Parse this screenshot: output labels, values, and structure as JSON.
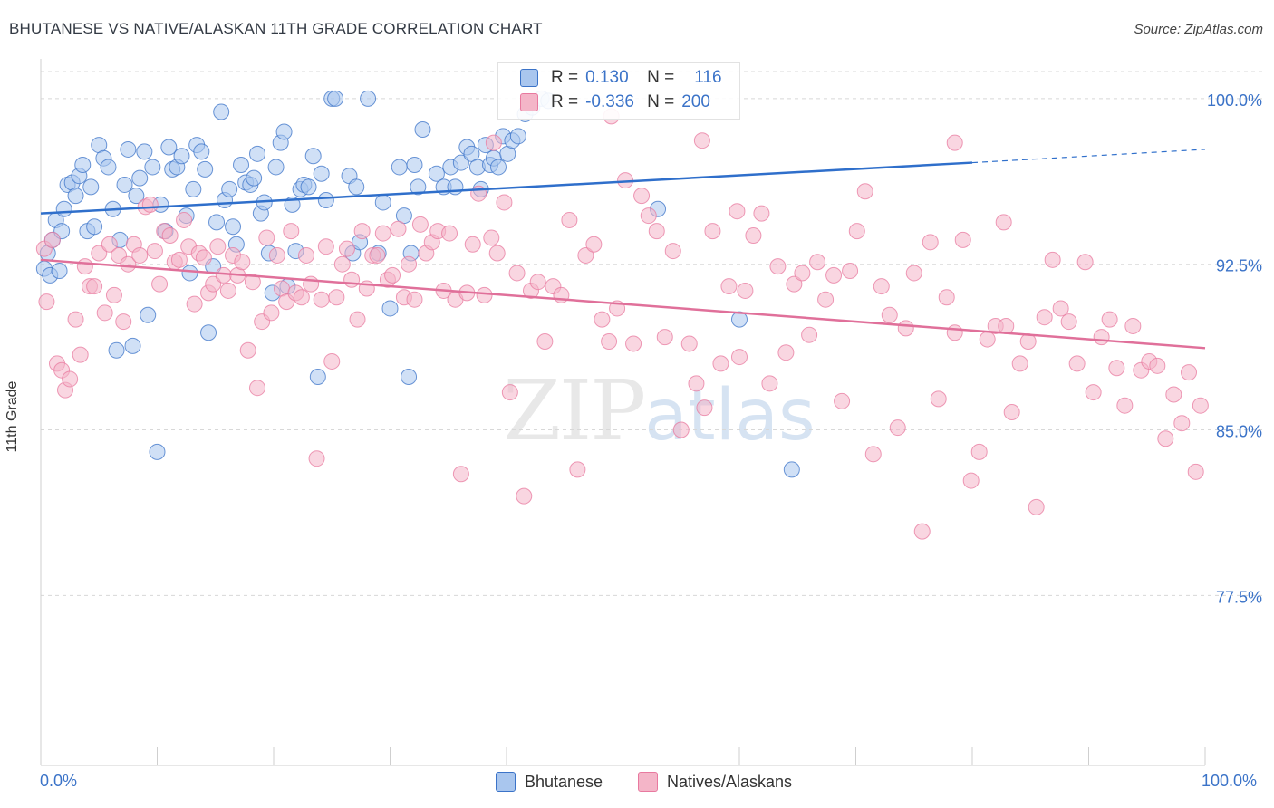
{
  "header": {
    "title": "BHUTANESE VS NATIVE/ALASKAN 11TH GRADE CORRELATION CHART",
    "source": "Source: ZipAtlas.com"
  },
  "watermark": {
    "zip": "ZIP",
    "atlas": "atlas"
  },
  "legend": {
    "rows": [
      {
        "r_label": "R =",
        "r_value": "0.130",
        "n_label": "N =",
        "n_value": "116"
      },
      {
        "r_label": "R =",
        "r_value": "-0.336",
        "n_label": "N =",
        "n_value": "200"
      }
    ]
  },
  "bottom_legend": {
    "series_a": "Bhutanese",
    "series_b": "Natives/Alaskans"
  },
  "x_axis": {
    "min_label": "0.0%",
    "max_label": "100.0%"
  },
  "colors": {
    "blue": "#3b73c8",
    "blue_fill": "#a9c6ee",
    "blue_line": "#2f6fcb",
    "pink": "#e8799f",
    "pink_fill": "#f4b5c8",
    "pink_line": "#e0709a",
    "grid": "#d8d8d8"
  },
  "chart_data": {
    "type": "scatter",
    "title": "BHUTANESE VS NATIVE/ALASKAN 11TH GRADE CORRELATION CHART",
    "xlabel": "",
    "ylabel": "11th Grade",
    "xlim": [
      0,
      100
    ],
    "ylim": [
      69.8,
      101.8
    ],
    "x_ticks": [
      "0.0%",
      "100.0%"
    ],
    "y_ticks": [
      {
        "value": 77.5,
        "label": "77.5%"
      },
      {
        "value": 85.0,
        "label": "85.0%"
      },
      {
        "value": 92.5,
        "label": "92.5%"
      },
      {
        "value": 100.0,
        "label": "100.0%"
      }
    ],
    "grid": true,
    "series": [
      {
        "name": "Bhutanese",
        "R": 0.13,
        "N": 116,
        "trend": {
          "x": [
            0,
            80,
            100
          ],
          "y": [
            94.8,
            97.1,
            97.7
          ]
        },
        "points": [
          [
            0.3,
            92.3
          ],
          [
            0.6,
            93.0
          ],
          [
            0.8,
            92.0
          ],
          [
            1.0,
            93.6
          ],
          [
            1.3,
            94.5
          ],
          [
            1.6,
            92.2
          ],
          [
            1.8,
            94.0
          ],
          [
            2.0,
            95.0
          ],
          [
            2.3,
            96.1
          ],
          [
            2.7,
            96.2
          ],
          [
            3.0,
            95.6
          ],
          [
            3.3,
            96.5
          ],
          [
            3.6,
            97.0
          ],
          [
            4.0,
            94.0
          ],
          [
            4.3,
            96.0
          ],
          [
            4.6,
            94.2
          ],
          [
            5.0,
            97.9
          ],
          [
            5.4,
            97.3
          ],
          [
            5.8,
            96.9
          ],
          [
            6.2,
            95.0
          ],
          [
            6.5,
            88.6
          ],
          [
            6.8,
            93.6
          ],
          [
            7.2,
            96.1
          ],
          [
            7.5,
            97.7
          ],
          [
            7.9,
            88.8
          ],
          [
            8.2,
            95.6
          ],
          [
            8.5,
            96.4
          ],
          [
            8.9,
            97.6
          ],
          [
            9.2,
            90.2
          ],
          [
            9.6,
            96.9
          ],
          [
            10.0,
            84.0
          ],
          [
            10.3,
            95.2
          ],
          [
            10.7,
            94.0
          ],
          [
            11.0,
            97.8
          ],
          [
            11.3,
            96.8
          ],
          [
            11.7,
            96.9
          ],
          [
            12.1,
            97.4
          ],
          [
            12.5,
            94.7
          ],
          [
            12.8,
            92.1
          ],
          [
            13.1,
            95.9
          ],
          [
            13.4,
            97.9
          ],
          [
            13.8,
            97.6
          ],
          [
            14.1,
            96.8
          ],
          [
            14.4,
            89.4
          ],
          [
            14.8,
            92.4
          ],
          [
            15.1,
            94.4
          ],
          [
            15.5,
            99.4
          ],
          [
            15.8,
            95.4
          ],
          [
            16.2,
            95.9
          ],
          [
            16.5,
            94.2
          ],
          [
            16.8,
            93.4
          ],
          [
            17.2,
            97.0
          ],
          [
            17.6,
            96.2
          ],
          [
            18.0,
            96.1
          ],
          [
            18.3,
            96.4
          ],
          [
            18.6,
            97.5
          ],
          [
            18.9,
            94.8
          ],
          [
            19.2,
            95.3
          ],
          [
            19.6,
            93.0
          ],
          [
            19.9,
            91.2
          ],
          [
            20.2,
            96.9
          ],
          [
            20.6,
            98.0
          ],
          [
            20.9,
            98.5
          ],
          [
            21.2,
            91.5
          ],
          [
            21.6,
            95.2
          ],
          [
            21.9,
            93.1
          ],
          [
            22.3,
            95.9
          ],
          [
            22.6,
            96.1
          ],
          [
            23.0,
            96.0
          ],
          [
            23.4,
            97.4
          ],
          [
            23.8,
            87.4
          ],
          [
            24.1,
            96.6
          ],
          [
            24.5,
            95.4
          ],
          [
            25.0,
            100.0
          ],
          [
            25.3,
            100.0
          ],
          [
            26.5,
            96.5
          ],
          [
            26.8,
            93.0
          ],
          [
            27.1,
            96.0
          ],
          [
            27.4,
            93.5
          ],
          [
            28.1,
            100.0
          ],
          [
            29.0,
            93.0
          ],
          [
            29.4,
            95.3
          ],
          [
            30.0,
            90.5
          ],
          [
            30.8,
            96.9
          ],
          [
            31.2,
            94.7
          ],
          [
            31.6,
            87.4
          ],
          [
            31.8,
            93.0
          ],
          [
            32.1,
            97.0
          ],
          [
            32.4,
            96.0
          ],
          [
            32.8,
            98.6
          ],
          [
            34.0,
            96.6
          ],
          [
            34.6,
            96.0
          ],
          [
            35.2,
            96.9
          ],
          [
            35.6,
            96.0
          ],
          [
            36.1,
            97.1
          ],
          [
            36.6,
            97.8
          ],
          [
            37.0,
            97.5
          ],
          [
            37.5,
            96.9
          ],
          [
            37.8,
            95.9
          ],
          [
            38.2,
            97.9
          ],
          [
            38.6,
            97.0
          ],
          [
            38.9,
            97.3
          ],
          [
            39.3,
            96.9
          ],
          [
            39.7,
            98.3
          ],
          [
            40.1,
            97.5
          ],
          [
            40.5,
            98.1
          ],
          [
            41.0,
            98.3
          ],
          [
            41.6,
            99.3
          ],
          [
            42.2,
            99.6
          ],
          [
            43.0,
            100.0
          ],
          [
            43.6,
            99.9
          ],
          [
            53.0,
            95.0
          ],
          [
            60.0,
            90.0
          ],
          [
            64.5,
            83.2
          ]
        ]
      },
      {
        "name": "Natives/Alaskans",
        "R": -0.336,
        "N": 200,
        "trend": {
          "x": [
            0,
            100
          ],
          "y": [
            92.7,
            88.7
          ]
        },
        "points": [
          [
            0.3,
            93.2
          ],
          [
            0.5,
            90.8
          ],
          [
            1.0,
            93.6
          ],
          [
            1.4,
            88.0
          ],
          [
            1.8,
            87.7
          ],
          [
            2.1,
            86.8
          ],
          [
            2.5,
            87.3
          ],
          [
            3.0,
            90.0
          ],
          [
            3.4,
            88.4
          ],
          [
            3.8,
            92.4
          ],
          [
            4.2,
            91.5
          ],
          [
            4.6,
            91.5
          ],
          [
            5.0,
            93.0
          ],
          [
            5.5,
            90.3
          ],
          [
            5.9,
            93.4
          ],
          [
            6.3,
            91.1
          ],
          [
            6.7,
            92.9
          ],
          [
            7.1,
            89.9
          ],
          [
            7.5,
            92.5
          ],
          [
            8.0,
            93.4
          ],
          [
            8.5,
            92.9
          ],
          [
            9.0,
            95.1
          ],
          [
            9.4,
            95.2
          ],
          [
            9.8,
            93.1
          ],
          [
            10.2,
            91.6
          ],
          [
            10.6,
            94.0
          ],
          [
            11.1,
            93.8
          ],
          [
            11.5,
            92.6
          ],
          [
            11.9,
            92.7
          ],
          [
            12.3,
            94.5
          ],
          [
            12.7,
            93.3
          ],
          [
            13.2,
            90.7
          ],
          [
            13.6,
            93.0
          ],
          [
            14.0,
            92.8
          ],
          [
            14.4,
            91.2
          ],
          [
            14.8,
            91.6
          ],
          [
            15.2,
            93.3
          ],
          [
            15.7,
            92.0
          ],
          [
            16.1,
            91.3
          ],
          [
            16.5,
            92.9
          ],
          [
            16.9,
            92.0
          ],
          [
            17.3,
            92.6
          ],
          [
            17.8,
            88.6
          ],
          [
            18.2,
            91.7
          ],
          [
            18.6,
            86.9
          ],
          [
            19.0,
            89.9
          ],
          [
            19.4,
            93.7
          ],
          [
            19.8,
            90.3
          ],
          [
            20.3,
            92.9
          ],
          [
            20.7,
            91.4
          ],
          [
            21.1,
            90.8
          ],
          [
            21.5,
            94.0
          ],
          [
            21.9,
            91.2
          ],
          [
            22.4,
            91.0
          ],
          [
            22.8,
            92.9
          ],
          [
            23.2,
            91.6
          ],
          [
            23.7,
            83.7
          ],
          [
            24.1,
            90.9
          ],
          [
            24.5,
            93.3
          ],
          [
            25.0,
            88.1
          ],
          [
            25.4,
            91.0
          ],
          [
            25.9,
            92.5
          ],
          [
            26.3,
            93.2
          ],
          [
            26.7,
            91.8
          ],
          [
            27.2,
            90.0
          ],
          [
            27.6,
            94.0
          ],
          [
            28.0,
            91.4
          ],
          [
            28.5,
            92.9
          ],
          [
            28.9,
            92.9
          ],
          [
            29.4,
            93.9
          ],
          [
            29.8,
            91.8
          ],
          [
            30.2,
            92.0
          ],
          [
            30.7,
            94.1
          ],
          [
            31.2,
            91.0
          ],
          [
            31.6,
            92.5
          ],
          [
            32.1,
            90.9
          ],
          [
            32.6,
            94.3
          ],
          [
            33.1,
            93.0
          ],
          [
            33.6,
            93.5
          ],
          [
            34.1,
            94.0
          ],
          [
            34.6,
            91.3
          ],
          [
            35.1,
            93.9
          ],
          [
            35.6,
            90.9
          ],
          [
            36.1,
            83.0
          ],
          [
            36.6,
            91.2
          ],
          [
            37.1,
            93.4
          ],
          [
            37.6,
            95.7
          ],
          [
            38.1,
            91.1
          ],
          [
            38.7,
            93.7
          ],
          [
            39.2,
            93.0
          ],
          [
            39.8,
            95.3
          ],
          [
            40.3,
            86.7
          ],
          [
            40.9,
            92.1
          ],
          [
            41.5,
            82.0
          ],
          [
            42.1,
            91.3
          ],
          [
            42.7,
            91.7
          ],
          [
            43.3,
            89.0
          ],
          [
            44.0,
            91.5
          ],
          [
            44.7,
            91.1
          ],
          [
            45.4,
            94.5
          ],
          [
            46.1,
            83.2
          ],
          [
            46.8,
            92.9
          ],
          [
            47.5,
            93.4
          ],
          [
            48.2,
            90.0
          ],
          [
            48.8,
            89.0
          ],
          [
            49.5,
            90.5
          ],
          [
            50.2,
            96.3
          ],
          [
            50.9,
            88.9
          ],
          [
            51.6,
            95.6
          ],
          [
            52.2,
            94.7
          ],
          [
            52.9,
            94.0
          ],
          [
            53.6,
            89.2
          ],
          [
            54.3,
            93.1
          ],
          [
            55.0,
            85.0
          ],
          [
            55.7,
            88.9
          ],
          [
            56.3,
            87.1
          ],
          [
            57.0,
            86.0
          ],
          [
            57.7,
            94.0
          ],
          [
            58.4,
            88.0
          ],
          [
            59.1,
            91.5
          ],
          [
            59.8,
            94.9
          ],
          [
            60.5,
            91.3
          ],
          [
            61.2,
            93.8
          ],
          [
            61.9,
            94.8
          ],
          [
            62.6,
            87.1
          ],
          [
            63.3,
            92.4
          ],
          [
            64.0,
            88.5
          ],
          [
            64.7,
            91.6
          ],
          [
            65.4,
            92.1
          ],
          [
            66.0,
            89.3
          ],
          [
            66.7,
            92.6
          ],
          [
            67.4,
            90.9
          ],
          [
            68.1,
            92.0
          ],
          [
            68.8,
            86.3
          ],
          [
            69.5,
            92.2
          ],
          [
            70.1,
            94.0
          ],
          [
            70.8,
            95.8
          ],
          [
            71.5,
            83.9
          ],
          [
            72.2,
            91.5
          ],
          [
            72.9,
            90.2
          ],
          [
            73.6,
            85.1
          ],
          [
            74.3,
            89.6
          ],
          [
            75.0,
            92.1
          ],
          [
            75.7,
            80.4
          ],
          [
            76.4,
            93.5
          ],
          [
            77.1,
            86.4
          ],
          [
            77.8,
            91.0
          ],
          [
            78.5,
            89.4
          ],
          [
            79.2,
            93.6
          ],
          [
            79.9,
            82.7
          ],
          [
            80.6,
            84.0
          ],
          [
            81.3,
            89.1
          ],
          [
            82.0,
            89.7
          ],
          [
            82.7,
            94.4
          ],
          [
            83.4,
            85.8
          ],
          [
            84.1,
            88.0
          ],
          [
            84.8,
            89.0
          ],
          [
            85.5,
            81.5
          ],
          [
            86.2,
            90.1
          ],
          [
            86.9,
            92.7
          ],
          [
            87.6,
            90.5
          ],
          [
            88.3,
            89.9
          ],
          [
            89.0,
            88.0
          ],
          [
            89.7,
            92.6
          ],
          [
            90.4,
            86.7
          ],
          [
            91.1,
            89.2
          ],
          [
            91.8,
            90.0
          ],
          [
            92.4,
            87.8
          ],
          [
            93.1,
            86.1
          ],
          [
            93.8,
            89.7
          ],
          [
            94.5,
            87.7
          ],
          [
            95.2,
            88.1
          ],
          [
            95.9,
            87.9
          ],
          [
            96.6,
            84.6
          ],
          [
            97.3,
            86.6
          ],
          [
            98.0,
            85.3
          ],
          [
            98.6,
            87.6
          ],
          [
            99.2,
            83.1
          ],
          [
            99.6,
            86.1
          ],
          [
            38.9,
            98.0
          ],
          [
            49.0,
            99.2
          ],
          [
            56.8,
            98.1
          ],
          [
            78.5,
            98.0
          ],
          [
            82.9,
            89.7
          ],
          [
            60.0,
            88.3
          ]
        ]
      }
    ]
  }
}
